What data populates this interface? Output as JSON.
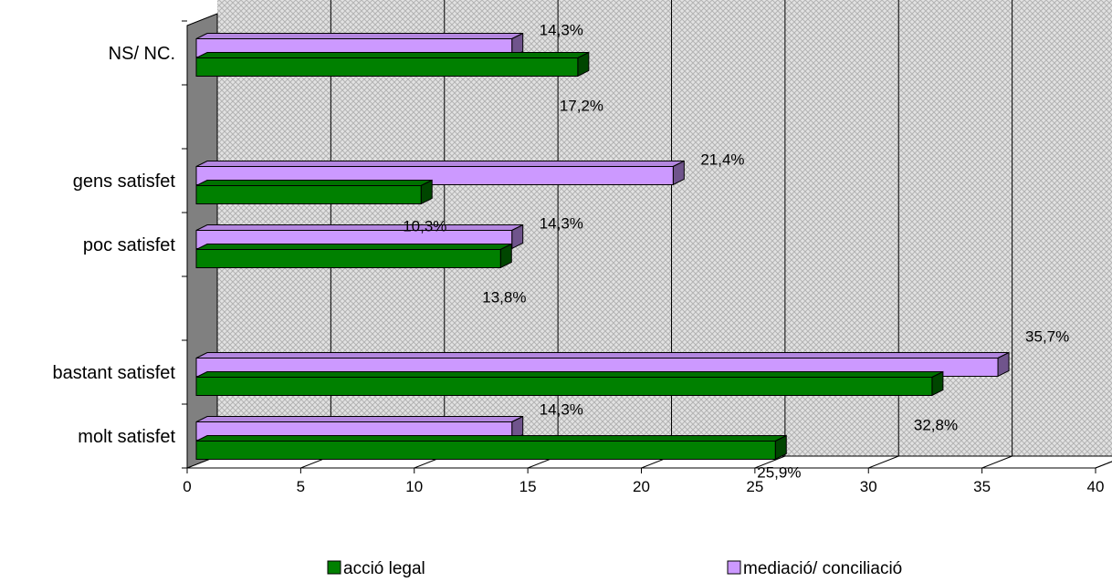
{
  "chart_data": {
    "type": "bar",
    "orientation": "horizontal",
    "categories": [
      "molt satisfet",
      "bastant satisfet",
      "",
      "poc satisfet",
      "gens satisfet",
      "",
      "NS/ NC."
    ],
    "series": [
      {
        "name": "acció legal",
        "color": "#008000",
        "values": [
          25.9,
          32.8,
          null,
          13.8,
          10.3,
          null,
          17.2
        ],
        "labels": [
          "25,9%",
          "32,8%",
          "",
          "13,8%",
          "10,3%",
          "",
          "17,2%"
        ]
      },
      {
        "name": "mediació/ conciliació",
        "color": "#CC99FF",
        "values": [
          14.3,
          35.7,
          null,
          14.3,
          21.4,
          null,
          14.3
        ],
        "labels": [
          "14,3%",
          "35,7%",
          "",
          "14,3%",
          "21,4%",
          "",
          "14,3%"
        ]
      }
    ],
    "x_ticks": [
      "0",
      "5",
      "10",
      "15",
      "20",
      "25",
      "30",
      "35",
      "40"
    ],
    "xlim": [
      0,
      40
    ],
    "grid": "vertical",
    "legend": "bottom",
    "three_d": true
  }
}
